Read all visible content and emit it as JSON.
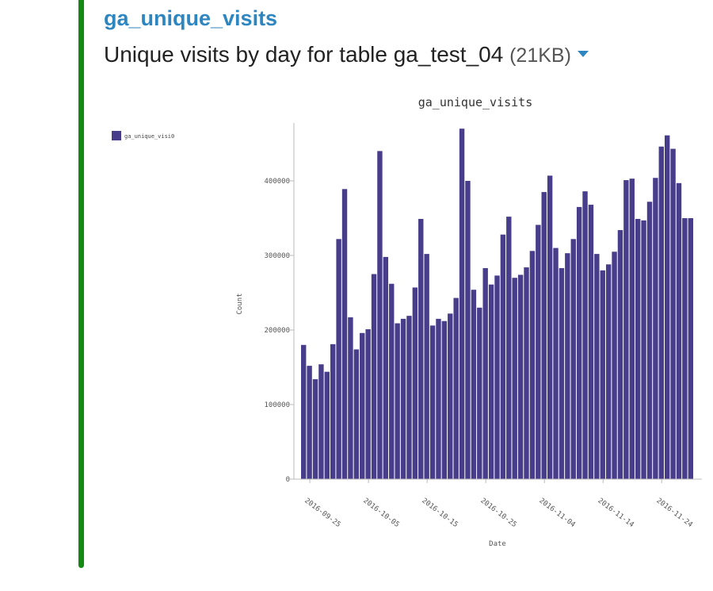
{
  "header": {
    "title": "ga_unique_visits",
    "subtitle": "Unique visits by day for table ga_test_04",
    "size_note": "(21KB)",
    "accent_color": "#148A14",
    "title_color": "#2E86C1",
    "caret_icon": "caret-down-icon"
  },
  "chart_data": {
    "type": "bar",
    "title": "ga_unique_visits",
    "xlabel": "Date",
    "ylabel": "Count",
    "ylim": [
      0,
      480000
    ],
    "yticks": [
      0,
      100000,
      200000,
      300000,
      400000
    ],
    "ytick_labels": [
      "0",
      "100000",
      "200000",
      "300000",
      "400000"
    ],
    "xtick_labels": [
      "2016-09-25",
      "2016-10-05",
      "2016-10-15",
      "2016-10-25",
      "2016-11-04",
      "2016-11-14",
      "2016-11-24"
    ],
    "xtick_positions": [
      "2016-09-25",
      "2016-10-05",
      "2016-10-15",
      "2016-10-25",
      "2016-11-04",
      "2016-11-14",
      "2016-11-24"
    ],
    "bar_color": "#483D8B",
    "grid": false,
    "legend": {
      "placement": "top-left",
      "entries": [
        {
          "name": "ga_unique_visi0",
          "color": "#483D8B"
        }
      ]
    },
    "series": [
      {
        "name": "ga_unique_visi0",
        "x": [
          "2016-09-24",
          "2016-09-25",
          "2016-09-26",
          "2016-09-27",
          "2016-09-28",
          "2016-09-29",
          "2016-09-30",
          "2016-10-01",
          "2016-10-02",
          "2016-10-03",
          "2016-10-04",
          "2016-10-05",
          "2016-10-06",
          "2016-10-07",
          "2016-10-08",
          "2016-10-09",
          "2016-10-10",
          "2016-10-11",
          "2016-10-12",
          "2016-10-13",
          "2016-10-14",
          "2016-10-15",
          "2016-10-16",
          "2016-10-17",
          "2016-10-18",
          "2016-10-19",
          "2016-10-20",
          "2016-10-21",
          "2016-10-22",
          "2016-10-23",
          "2016-10-24",
          "2016-10-25",
          "2016-10-26",
          "2016-10-27",
          "2016-10-28",
          "2016-10-29",
          "2016-10-30",
          "2016-10-31",
          "2016-11-01",
          "2016-11-02",
          "2016-11-03",
          "2016-11-04",
          "2016-11-05",
          "2016-11-06",
          "2016-11-07",
          "2016-11-08",
          "2016-11-09",
          "2016-11-10",
          "2016-11-11",
          "2016-11-12",
          "2016-11-13",
          "2016-11-14",
          "2016-11-15",
          "2016-11-16",
          "2016-11-17",
          "2016-11-18",
          "2016-11-19",
          "2016-11-20",
          "2016-11-21",
          "2016-11-22",
          "2016-11-23",
          "2016-11-24",
          "2016-11-25",
          "2016-11-26",
          "2016-11-27",
          "2016-11-28",
          "2016-11-29"
        ],
        "values": [
          180000,
          152000,
          134000,
          154000,
          144000,
          181000,
          322000,
          389000,
          217000,
          174000,
          196000,
          201000,
          275000,
          440000,
          298000,
          262000,
          209000,
          215000,
          219000,
          257000,
          349000,
          302000,
          206000,
          215000,
          212000,
          222000,
          243000,
          470000,
          400000,
          254000,
          230000,
          283000,
          261000,
          273000,
          328000,
          352000,
          270000,
          274000,
          284000,
          306000,
          341000,
          385000,
          407000,
          310000,
          283000,
          303000,
          322000,
          365000,
          386000,
          368000,
          302000,
          280000,
          288000,
          305000,
          334000,
          401000,
          403000,
          349000,
          347000,
          372000,
          404000,
          446000,
          461000,
          443000,
          397000,
          350000,
          350000
        ]
      }
    ]
  }
}
